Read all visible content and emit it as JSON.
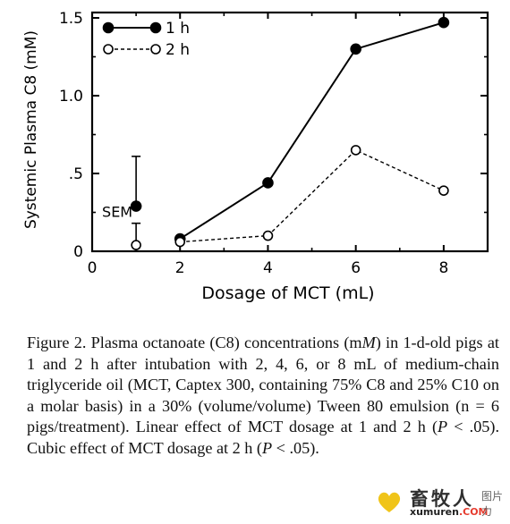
{
  "chart_data": {
    "type": "line",
    "xlabel": "Dosage of MCT (mL)",
    "ylabel": "Systemic Plasma C8 (mM)",
    "xlim": [
      0,
      9
    ],
    "ylim": [
      0,
      1.5
    ],
    "xticks": [
      0,
      2,
      4,
      6,
      8
    ],
    "yticks": [
      0,
      0.5,
      1.0,
      1.5
    ],
    "ytick_labels": [
      "0",
      ".5",
      "1.0",
      "1.5"
    ],
    "x": [
      2,
      4,
      6,
      8
    ],
    "series": [
      {
        "name": "1 h",
        "values": [
          0.08,
          0.44,
          1.3,
          1.47
        ],
        "marker": "filled",
        "line": "solid"
      },
      {
        "name": "2 h",
        "values": [
          0.06,
          0.1,
          0.65,
          0.39
        ],
        "marker": "open",
        "line": "dashed"
      }
    ],
    "legend": "top-left",
    "sem": {
      "label": "SEM",
      "x": 1,
      "filled_value": 0.29,
      "open_value": 0.04,
      "upper": 0.61,
      "lower": 0.18
    }
  },
  "caption": {
    "figure_label": "Figure 2.",
    "text_1": " Plasma octanoate (C8) concentrations (m",
    "unit_italic": "M",
    "text_2": ") in 1-d-old pigs at 1 and 2 h after intubation with 2, 4, 6, or 8 mL of medium-chain triglyceride oil (MCT, Captex 300, containing 75% C8 and 25% C10 on a molar basis) in a 30% (volume/volume) Tween 80 emulsion (n = 6 pigs/treatment). Linear effect of MCT dosage at 1 and 2 h (",
    "p1_italic": "P",
    "text_3": " < .05). Cubic effect of MCT dosage at 2 h (",
    "p2_italic": "P",
    "text_4": " < .05)."
  },
  "watermark": {
    "chinese": "畜牧人",
    "site": "xumuren",
    "tld": ".COM",
    "side_text": "图片力"
  },
  "colors": {
    "ink": "#000000",
    "watermark_icon": "#f0c419",
    "watermark_tld": "#e63b2e"
  }
}
